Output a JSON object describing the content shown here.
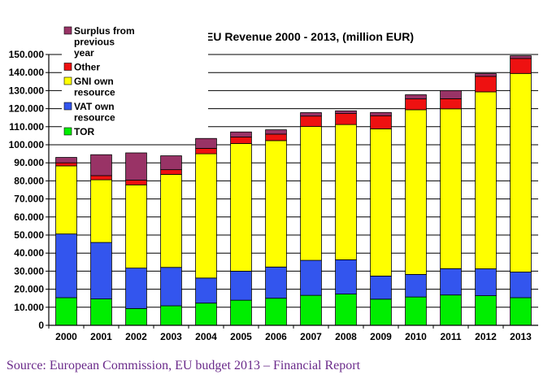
{
  "chart_data": {
    "type": "bar",
    "stacked": true,
    "title": "EU Revenue 2000 - 2013, (million EUR)",
    "xlabel": "",
    "ylabel": "",
    "ylim": [
      0,
      150000
    ],
    "yticks": [
      0,
      10000,
      20000,
      30000,
      40000,
      50000,
      60000,
      70000,
      80000,
      90000,
      100000,
      110000,
      120000,
      130000,
      140000,
      150000
    ],
    "ytick_labels": [
      "0",
      "10.000",
      "20.000",
      "30.000",
      "40.000",
      "50.000",
      "60.000",
      "70.000",
      "80.000",
      "90.000",
      "100.000",
      "110.000",
      "120.000",
      "130.000",
      "140.000",
      "150.000"
    ],
    "grid": true,
    "legend_position": "top-left",
    "categories": [
      "2000",
      "2001",
      "2002",
      "2003",
      "2004",
      "2005",
      "2006",
      "2007",
      "2008",
      "2009",
      "2010",
      "2011",
      "2012",
      "2013"
    ],
    "series": [
      {
        "name": "TOR",
        "color": "#00ee00",
        "values": [
          15300,
          14600,
          9300,
          10800,
          12300,
          13900,
          15000,
          16600,
          17300,
          14500,
          15700,
          16800,
          16400,
          15300
        ]
      },
      {
        "name": "VAT own resource",
        "color": "#3355ee",
        "values": [
          35300,
          31300,
          22400,
          21300,
          13900,
          16100,
          17300,
          19400,
          19000,
          12800,
          12500,
          14600,
          14900,
          14200
        ]
      },
      {
        "name": "GNI own resource",
        "color": "#ffff00",
        "values": [
          37700,
          34700,
          46100,
          51500,
          68800,
          70700,
          70000,
          74100,
          74900,
          81500,
          91200,
          88500,
          98000,
          110000
        ]
      },
      {
        "name": "Other",
        "color": "#ee1111",
        "values": [
          1700,
          2300,
          2600,
          2600,
          3000,
          3600,
          3600,
          5800,
          6100,
          7300,
          6000,
          5600,
          8600,
          8300
        ]
      },
      {
        "name": "Surplus from previous year",
        "color": "#993366",
        "values": [
          3000,
          11600,
          15100,
          7700,
          5500,
          2800,
          2400,
          1900,
          1500,
          1800,
          2300,
          4500,
          1500,
          1500
        ]
      }
    ]
  },
  "source": "Source: European Commission, EU budget 2013 – Financial Report"
}
